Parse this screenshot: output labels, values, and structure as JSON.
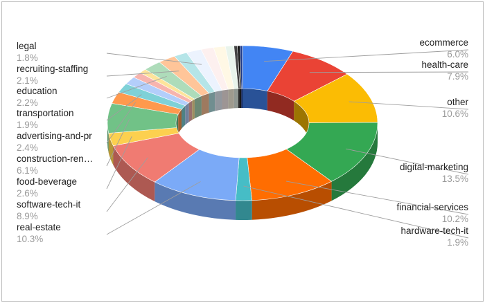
{
  "chart_data": {
    "type": "pie",
    "style": "3d-donut",
    "title": "",
    "legend": "none",
    "slices": [
      {
        "label": "ecommerce",
        "value": 6.0,
        "pct_text": "6.0%",
        "color": "#4285f4"
      },
      {
        "label": "health-care",
        "value": 7.9,
        "pct_text": "7.9%",
        "color": "#ea4335"
      },
      {
        "label": "other",
        "value": 10.6,
        "pct_text": "10.6%",
        "color": "#fbbc04"
      },
      {
        "label": "digital-marketing",
        "value": 13.5,
        "pct_text": "13.5%",
        "color": "#34a853"
      },
      {
        "label": "financial-services",
        "value": 10.2,
        "pct_text": "10.2%",
        "color": "#ff6d01"
      },
      {
        "label": "hardware-tech-it",
        "value": 1.9,
        "pct_text": "1.9%",
        "color": "#46bdc6"
      },
      {
        "label": "real-estate",
        "value": 10.3,
        "pct_text": "10.3%",
        "color": "#7baaf7"
      },
      {
        "label": "software-tech-it",
        "value": 8.9,
        "pct_text": "8.9%",
        "color": "#f07b72"
      },
      {
        "label": "food-beverage",
        "value": 2.6,
        "pct_text": "2.6%",
        "color": "#fcd04f"
      },
      {
        "label": "construction-ren…",
        "value": 6.1,
        "pct_text": "6.1%",
        "color": "#71c287"
      },
      {
        "label": "advertising-and-pr",
        "value": 2.4,
        "pct_text": "2.4%",
        "color": "#ff994d"
      },
      {
        "label": "transportation",
        "value": 1.9,
        "pct_text": "1.9%",
        "color": "#7ed1d7"
      },
      {
        "label": "",
        "value": 1.6,
        "pct_text": "",
        "color": "#b3cefb"
      },
      {
        "label": "",
        "value": 1.2,
        "pct_text": "",
        "color": "#f7b4ae"
      },
      {
        "label": "",
        "value": 0.9,
        "pct_text": "",
        "color": "#fde49b"
      },
      {
        "label": "education",
        "value": 2.2,
        "pct_text": "2.2%",
        "color": "#aedcba"
      },
      {
        "label": "recruiting-staffing",
        "value": 2.1,
        "pct_text": "2.1%",
        "color": "#ffc599"
      },
      {
        "label": "",
        "value": 1.6,
        "pct_text": "",
        "color": "#b5e5e8"
      },
      {
        "label": "legal",
        "value": 1.8,
        "pct_text": "1.8%",
        "color": "#ecf3fe"
      },
      {
        "label": "",
        "value": 1.5,
        "pct_text": "",
        "color": "#fdf0ef"
      },
      {
        "label": "",
        "value": 1.4,
        "pct_text": "",
        "color": "#fff8e5"
      },
      {
        "label": "",
        "value": 1.0,
        "pct_text": "",
        "color": "#e9f4ec"
      },
      {
        "label": "",
        "value": 0.4,
        "pct_text": "",
        "color": "#444444"
      },
      {
        "label": "",
        "value": 0.3,
        "pct_text": "",
        "color": "#111111"
      },
      {
        "label": "",
        "value": 0.3,
        "pct_text": "",
        "color": "#1e3a8a"
      }
    ]
  }
}
